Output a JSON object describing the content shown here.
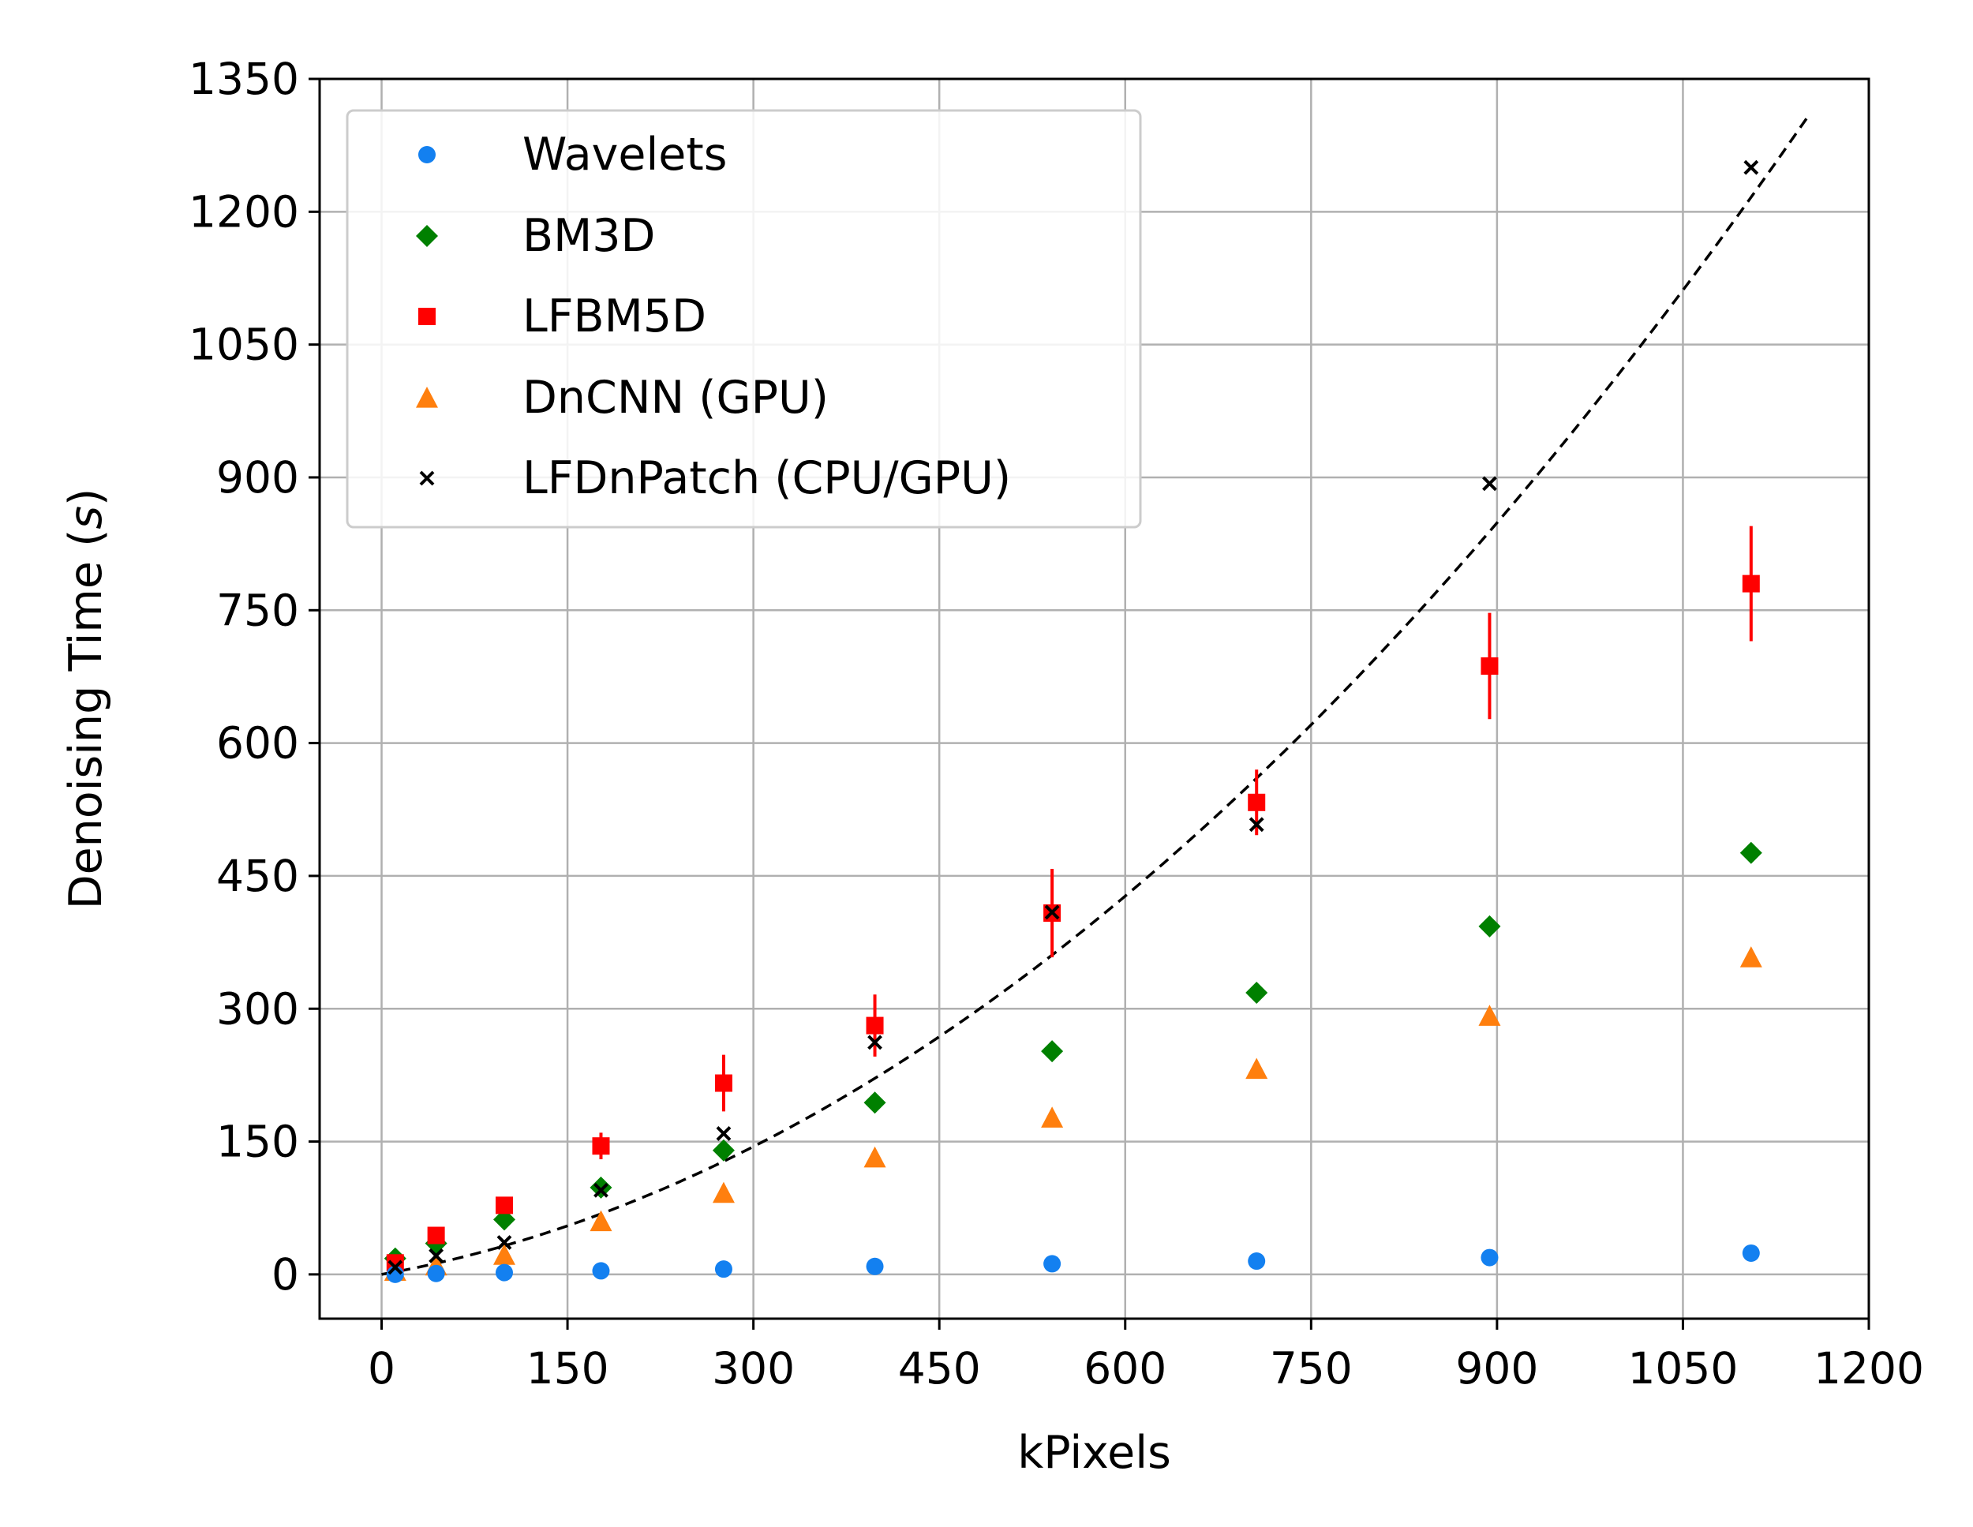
{
  "chart_data": {
    "type": "scatter",
    "xlabel": "kPixels",
    "ylabel_main": "Denoising Time (",
    "ylabel_italic": "s",
    "ylabel_close": ")",
    "xlim": [
      -50,
      1200
    ],
    "ylim": [
      -50,
      1350
    ],
    "xticks": [
      0,
      150,
      300,
      450,
      600,
      750,
      900,
      1050,
      1200
    ],
    "yticks": [
      0,
      150,
      300,
      450,
      600,
      750,
      900,
      1050,
      1200,
      1350
    ],
    "grid": true,
    "legend_position": "top-left",
    "series": [
      {
        "name": "Wavelets",
        "marker": "circle",
        "color": "#1380f0",
        "points": [
          [
            11,
            0
          ],
          [
            44,
            1
          ],
          [
            99,
            2
          ],
          [
            177,
            4
          ],
          [
            276,
            6
          ],
          [
            398,
            9
          ],
          [
            541,
            12
          ],
          [
            706,
            15
          ],
          [
            894,
            19
          ],
          [
            1105,
            24
          ]
        ]
      },
      {
        "name": "BM3D",
        "marker": "diamond",
        "color": "#008000",
        "points": [
          [
            11,
            18
          ],
          [
            44,
            35
          ],
          [
            99,
            62
          ],
          [
            177,
            98
          ],
          [
            276,
            140
          ],
          [
            398,
            194
          ],
          [
            541,
            252
          ],
          [
            706,
            318
          ],
          [
            894,
            393
          ],
          [
            1105,
            476
          ]
        ]
      },
      {
        "name": "LFBM5D",
        "marker": "square",
        "color": "#ff0000",
        "points": [
          [
            11,
            13,
            4
          ],
          [
            44,
            44,
            6
          ],
          [
            99,
            78,
            8
          ],
          [
            177,
            145,
            15
          ],
          [
            276,
            216,
            32
          ],
          [
            398,
            281,
            35
          ],
          [
            541,
            408,
            50
          ],
          [
            706,
            533,
            37
          ],
          [
            894,
            687,
            60
          ],
          [
            1105,
            780,
            65
          ]
        ]
      },
      {
        "name": "DnCNN (GPU)",
        "marker": "triangle",
        "color": "#ff7f0e",
        "points": [
          [
            11,
            4
          ],
          [
            44,
            10
          ],
          [
            99,
            22
          ],
          [
            177,
            60
          ],
          [
            276,
            92
          ],
          [
            398,
            132
          ],
          [
            541,
            177
          ],
          [
            706,
            232
          ],
          [
            894,
            292
          ],
          [
            1105,
            358
          ]
        ]
      },
      {
        "name": "LFDnPatch (CPU/GPU)",
        "marker": "x",
        "color": "#000000",
        "points": [
          [
            11,
            8
          ],
          [
            44,
            21
          ],
          [
            99,
            36
          ],
          [
            177,
            95
          ],
          [
            276,
            159
          ],
          [
            398,
            262
          ],
          [
            541,
            409
          ],
          [
            706,
            508
          ],
          [
            894,
            893
          ],
          [
            1105,
            1250
          ]
        ]
      }
    ],
    "fit_curve": {
      "style": "dashed",
      "color": "#000000",
      "quadratic_coefficients": [
        0,
        0.25,
        0.00077
      ],
      "x_range": [
        0,
        1150
      ]
    }
  }
}
